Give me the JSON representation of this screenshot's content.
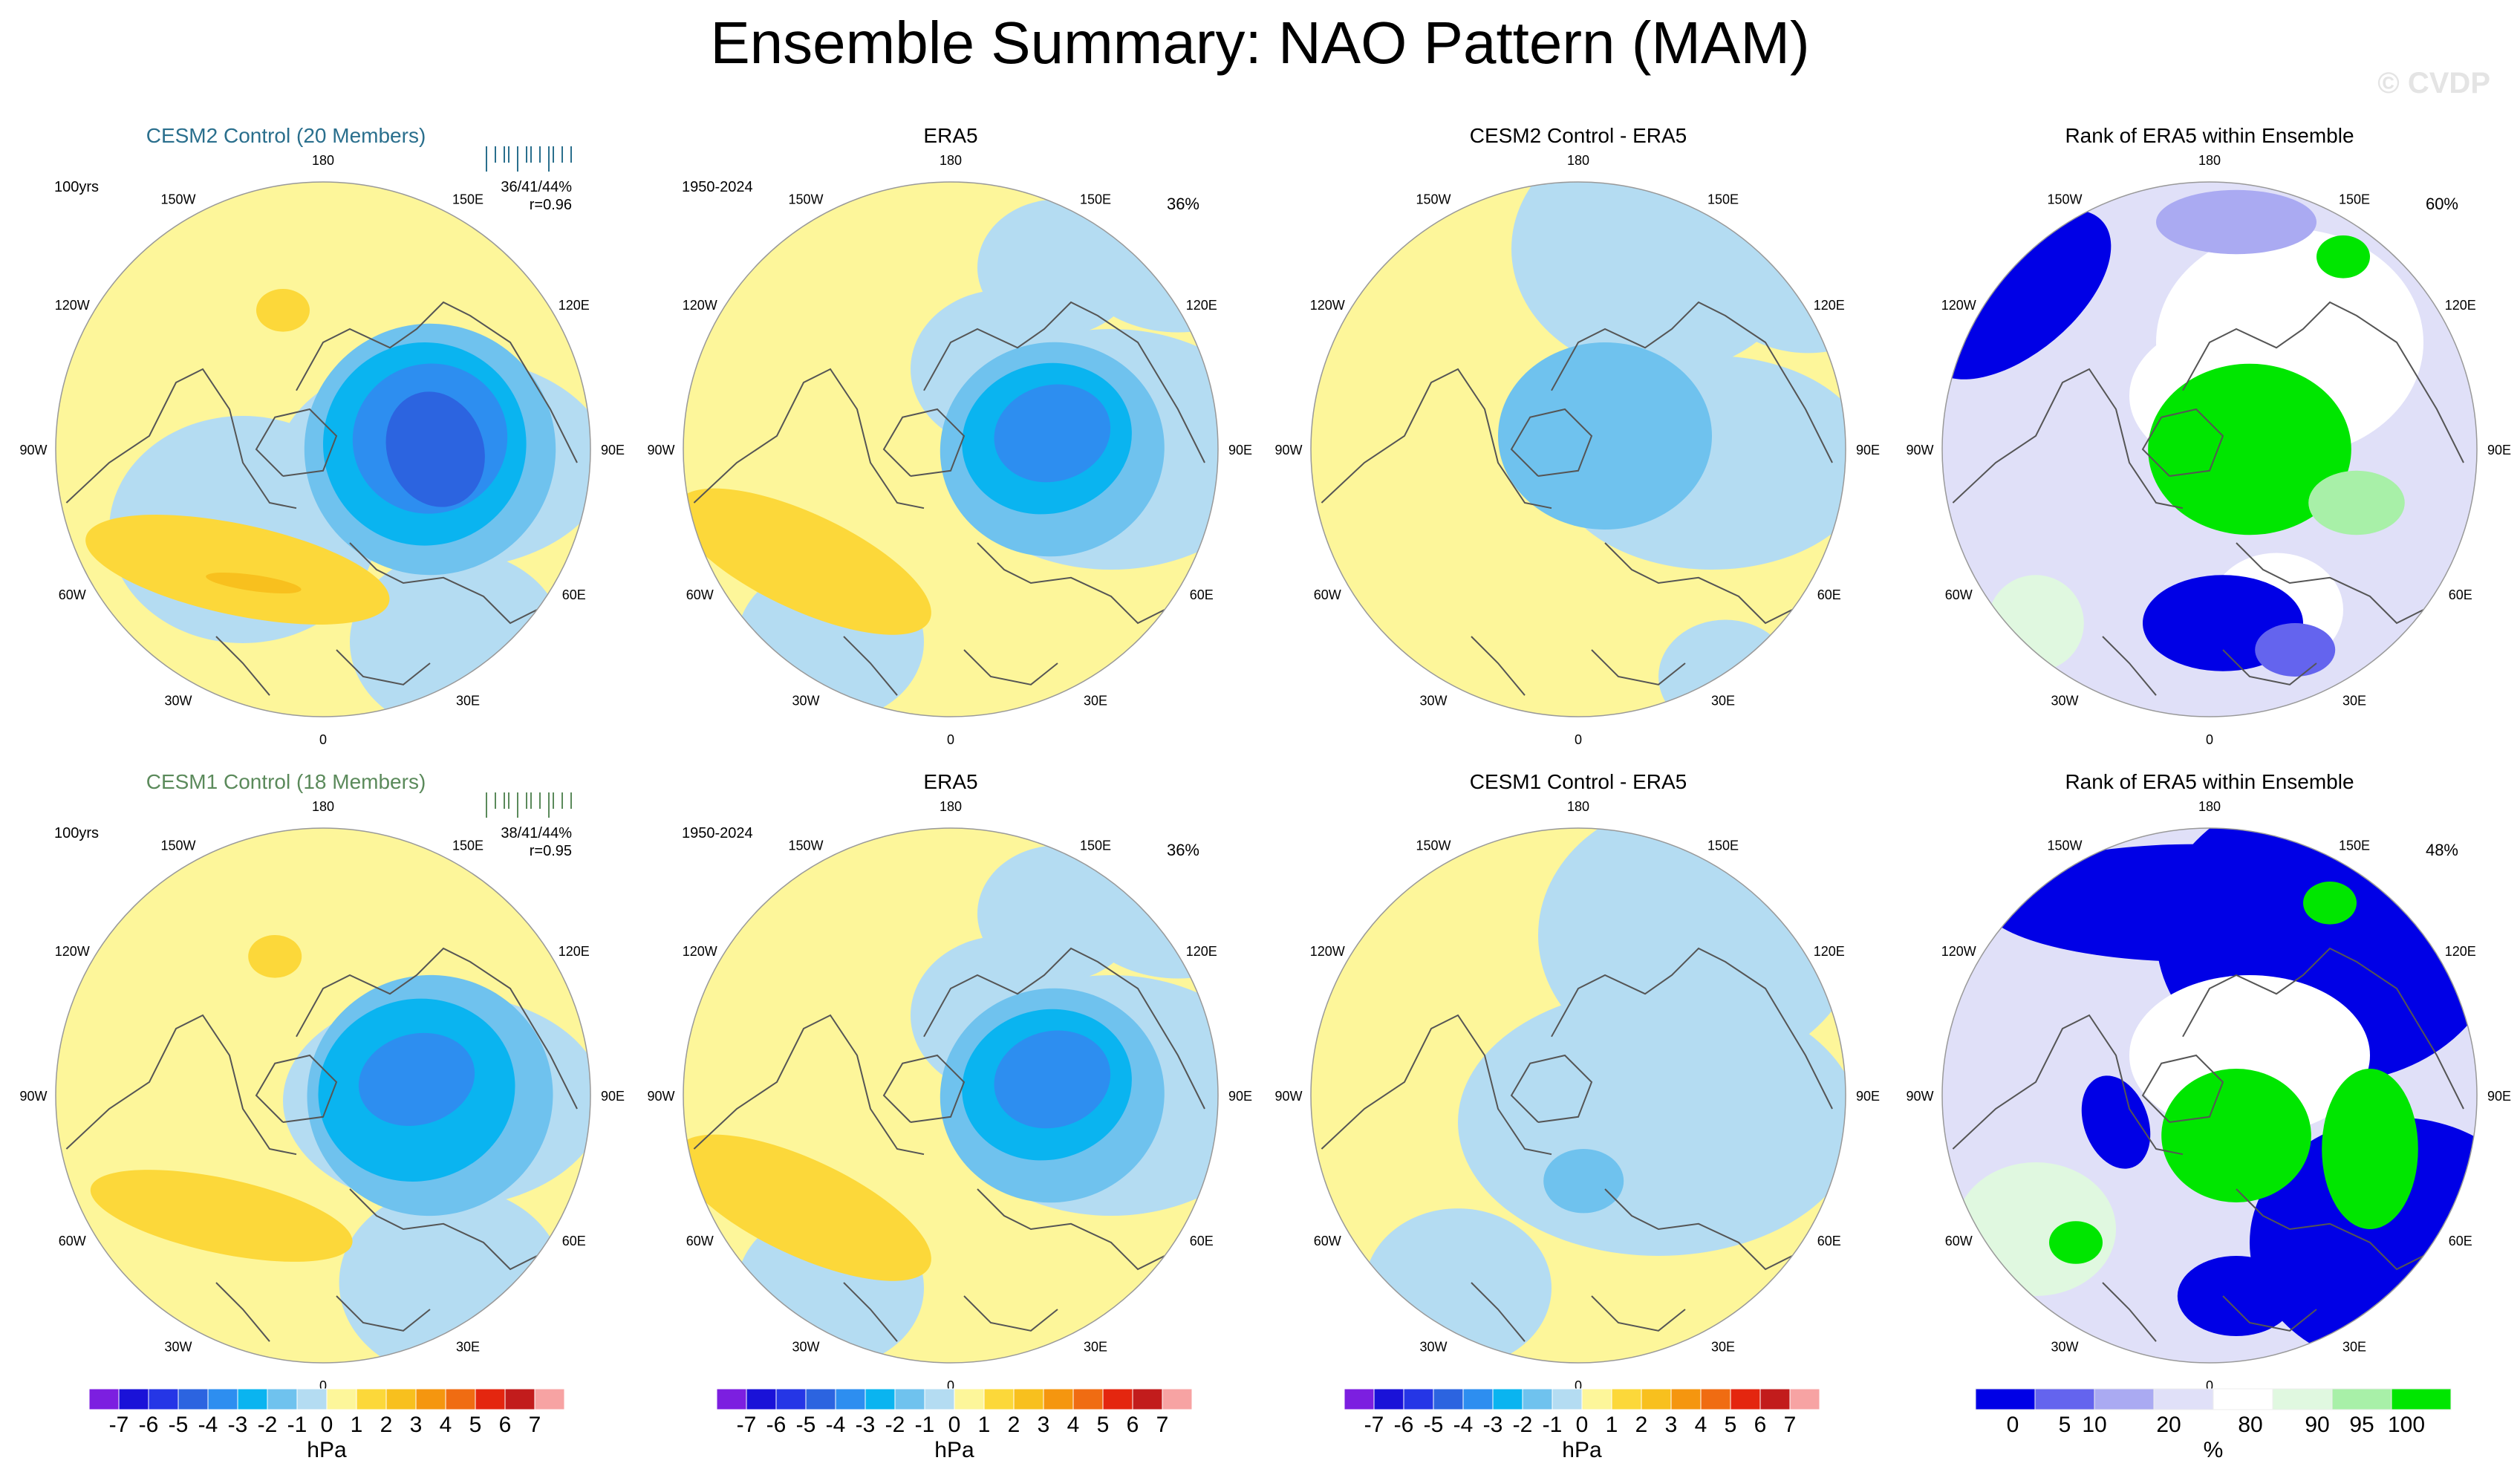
{
  "title": "Ensemble Summary: NAO Pattern (MAM)",
  "watermark": "© CVDP",
  "colors": {
    "cesm2_title": "#2a6f8d",
    "cesm1_title": "#5b8a5b",
    "land_outline": "#555555"
  },
  "rows": [
    {
      "panels": [
        {
          "kind": "pattern",
          "title": "CESM2 Control (20 Members)",
          "title_style": "cesm2",
          "left_label": "100yrs",
          "stats_line1": "36/41/44%",
          "stats_line2": "r=0.96",
          "right_label": "",
          "field": "model_nao_cesm2"
        },
        {
          "kind": "pattern",
          "title": "ERA5",
          "title_style": "plain",
          "left_label": "1950-2024",
          "stats_line1": "",
          "stats_line2": "",
          "right_label": "36%",
          "field": "obs_nao"
        },
        {
          "kind": "pattern",
          "title": "CESM2 Control - ERA5",
          "title_style": "plain",
          "left_label": "",
          "stats_line1": "",
          "stats_line2": "",
          "right_label": "",
          "field": "diff_cesm2"
        },
        {
          "kind": "rank",
          "title": "Rank of ERA5 within Ensemble",
          "title_style": "plain",
          "left_label": "",
          "stats_line1": "",
          "stats_line2": "",
          "right_label": "60%",
          "field": "rank_cesm2"
        }
      ]
    },
    {
      "panels": [
        {
          "kind": "pattern",
          "title": "CESM1 Control (18 Members)",
          "title_style": "cesm1",
          "left_label": "100yrs",
          "stats_line1": "38/41/44%",
          "stats_line2": "r=0.95",
          "right_label": "",
          "field": "model_nao_cesm1"
        },
        {
          "kind": "pattern",
          "title": "ERA5",
          "title_style": "plain",
          "left_label": "1950-2024",
          "stats_line1": "",
          "stats_line2": "",
          "right_label": "36%",
          "field": "obs_nao"
        },
        {
          "kind": "pattern",
          "title": "CESM1 Control - ERA5",
          "title_style": "plain",
          "left_label": "",
          "stats_line1": "",
          "stats_line2": "",
          "right_label": "",
          "field": "diff_cesm1"
        },
        {
          "kind": "rank",
          "title": "Rank of ERA5 within Ensemble",
          "title_style": "plain",
          "left_label": "",
          "stats_line1": "",
          "stats_line2": "",
          "right_label": "48%",
          "field": "rank_cesm1"
        }
      ]
    }
  ],
  "longitude_labels": [
    "180",
    "150E",
    "120E",
    "90E",
    "60E",
    "30E",
    "0",
    "30W",
    "60W",
    "90W",
    "120W",
    "150W"
  ],
  "colorbars": {
    "hpa": {
      "unit": "hPa",
      "tick_labels": [
        "-7",
        "-6",
        "-5",
        "-4",
        "-3",
        "-2",
        "-1",
        "0",
        "1",
        "2",
        "3",
        "4",
        "5",
        "6",
        "7"
      ],
      "colors": [
        "#7c1fe0",
        "#1a12d8",
        "#2536e6",
        "#2c64e0",
        "#2d8ef0",
        "#0ab4f0",
        "#6fc2ee",
        "#b4dcf2",
        "#fdf69a",
        "#fcd83a",
        "#f8c01e",
        "#f5960f",
        "#f06c12",
        "#e4260f",
        "#c21c1c",
        "#f7a3a3"
      ]
    },
    "rank": {
      "unit": "%",
      "tick_labels": [
        "0",
        "5",
        "10",
        "20",
        "80",
        "90",
        "95",
        "100"
      ],
      "colors": [
        "#0000e6",
        "#6464ee",
        "#aaaaf2",
        "#e0e0f8",
        "#ffffff",
        "#e0f8e0",
        "#a8f0a8",
        "#00e600"
      ]
    }
  }
}
